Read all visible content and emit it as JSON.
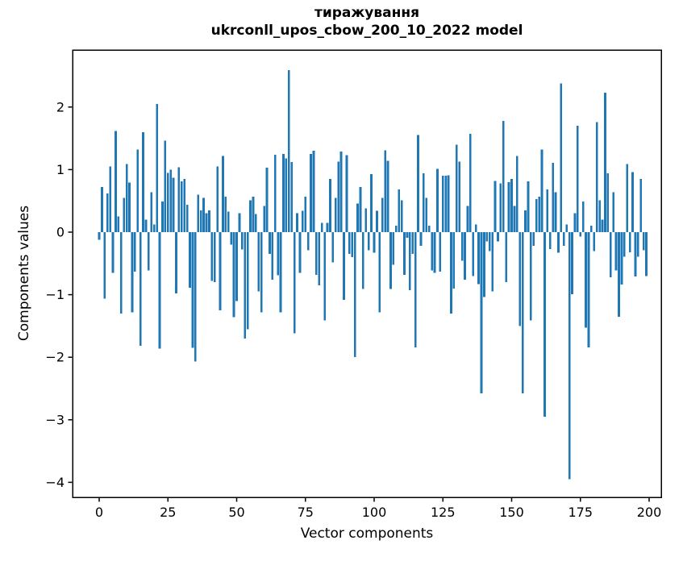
{
  "figure": {
    "title_line1": "тиражування",
    "title_line2": "ukrconll_upos_cbow_200_10_2022 model"
  },
  "chart_data": {
    "type": "bar",
    "title": "тиражування — ukrconll_upos_cbow_200_10_2022 model",
    "xlabel": "Vector components",
    "ylabel": "Components values",
    "bar_color": "#1f77b4",
    "axis_color": "#000000",
    "grid": false,
    "legend": null,
    "xlim": [
      -10,
      205
    ],
    "ylim": [
      -4.28,
      2.92
    ],
    "x_ticks": [
      0,
      25,
      50,
      75,
      100,
      125,
      150,
      175,
      200
    ],
    "y_ticks": [
      2,
      1,
      0,
      -1,
      -2,
      -3,
      -4
    ],
    "x_start": 0,
    "values": [
      -0.12,
      0.72,
      -1.06,
      0.62,
      1.05,
      -0.65,
      1.62,
      0.25,
      -1.3,
      0.55,
      1.09,
      0.79,
      -1.28,
      -0.63,
      1.32,
      -1.82,
      1.6,
      0.2,
      -0.61,
      0.64,
      0.12,
      2.05,
      -1.86,
      0.49,
      1.46,
      0.95,
      1.0,
      0.87,
      -0.98,
      1.04,
      0.81,
      0.85,
      0.44,
      -0.89,
      -1.85,
      -2.07,
      0.6,
      0.35,
      0.55,
      0.3,
      0.35,
      -0.78,
      -0.8,
      1.05,
      -1.25,
      1.22,
      0.57,
      0.33,
      -0.2,
      -1.36,
      -1.1,
      0.3,
      -0.28,
      -1.7,
      -1.55,
      0.51,
      0.57,
      0.29,
      -0.95,
      -1.28,
      0.42,
      1.03,
      -0.35,
      -0.76,
      1.24,
      -0.69,
      -1.28,
      1.25,
      1.18,
      2.59,
      1.12,
      -1.62,
      0.3,
      -0.65,
      0.34,
      0.57,
      -0.29,
      1.25,
      1.3,
      -0.68,
      -0.85,
      0.15,
      -1.41,
      0.15,
      0.85,
      -0.48,
      0.55,
      1.13,
      1.29,
      -1.08,
      1.23,
      -0.35,
      -0.4,
      -2.0,
      0.46,
      0.72,
      -0.91,
      0.38,
      -0.29,
      0.93,
      -0.33,
      0.34,
      -1.28,
      0.55,
      1.31,
      1.14,
      -0.91,
      -0.52,
      0.1,
      0.68,
      0.51,
      -0.68,
      -0.09,
      -0.93,
      -0.35,
      -1.84,
      1.55,
      -0.22,
      0.94,
      0.55,
      0.1,
      -0.61,
      -0.65,
      1.01,
      -0.63,
      0.9,
      0.9,
      0.91,
      -1.3,
      -0.9,
      1.4,
      1.13,
      -0.46,
      -0.76,
      0.42,
      1.57,
      -0.7,
      0.12,
      -0.83,
      -2.58,
      -1.04,
      -0.15,
      -0.3,
      -0.95,
      0.82,
      -0.15,
      0.78,
      1.78,
      -0.8,
      0.8,
      0.85,
      0.42,
      1.22,
      -1.5,
      -2.58,
      0.35,
      0.81,
      -1.41,
      -0.22,
      0.53,
      0.57,
      1.32,
      -2.95,
      0.68,
      -0.27,
      1.11,
      0.64,
      -0.33,
      2.38,
      -0.22,
      0.12,
      -3.95,
      -0.99,
      0.3,
      1.7,
      -0.07,
      0.49,
      -1.53,
      -1.84,
      0.1,
      -0.3,
      1.76,
      0.51,
      0.2,
      2.23,
      0.94,
      -0.72,
      0.64,
      -0.61,
      -1.35,
      -0.84,
      -0.39,
      1.09,
      -0.32,
      0.96,
      -0.71,
      -0.39,
      0.85,
      -0.29,
      -0.7
    ]
  }
}
